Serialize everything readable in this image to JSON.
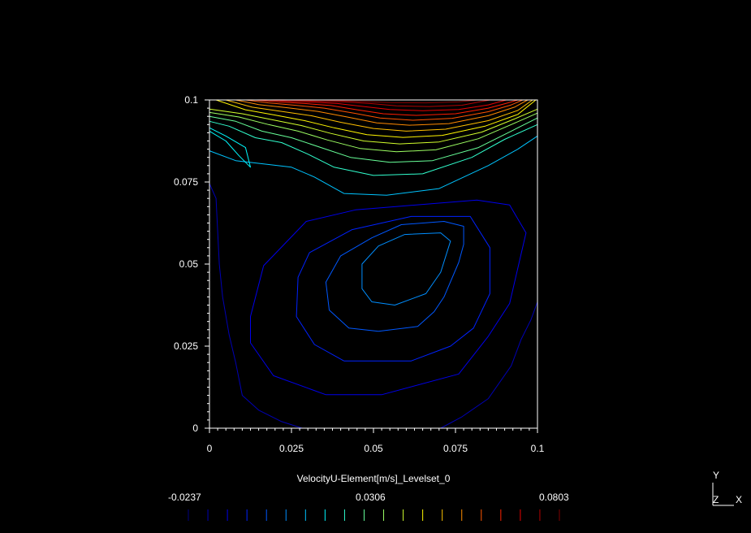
{
  "chart_data": {
    "type": "contour",
    "title": "",
    "xlabel": "",
    "ylabel": "",
    "xlim": [
      0,
      0.1
    ],
    "ylim": [
      0,
      0.1
    ],
    "x_ticks": [
      "0",
      "0.025",
      "0.05",
      "0.075",
      "0.1"
    ],
    "y_ticks": [
      "0",
      "0.025",
      "0.05",
      "0.075",
      "0.1"
    ],
    "grid": false,
    "colorbar": {
      "title": "VelocityU-Element[m/s]_Levelset_0",
      "min_label": "-0.0237",
      "mid_label": "0.0306",
      "max_label": "0.0803",
      "min": -0.0237,
      "max": 0.0803,
      "levels": 20
    },
    "contours": [
      {
        "level": -0.0182,
        "points": [
          [
            0.0283,
            0.0
          ],
          [
            0.022,
            0.002
          ],
          [
            0.015,
            0.0055
          ],
          [
            0.01,
            0.01
          ],
          [
            0.008,
            0.02
          ],
          [
            0.006,
            0.0285
          ],
          [
            0.004,
            0.04
          ],
          [
            0.003,
            0.05
          ],
          [
            0.0025,
            0.06
          ],
          [
            0.002,
            0.07
          ],
          [
            0.0,
            0.0745
          ]
        ]
      },
      {
        "level": -0.0182,
        "points": [
          [
            0.0705,
            0.0
          ],
          [
            0.077,
            0.0035
          ],
          [
            0.085,
            0.009
          ],
          [
            0.092,
            0.019
          ],
          [
            0.095,
            0.027
          ],
          [
            0.098,
            0.033
          ],
          [
            0.1,
            0.0385
          ]
        ]
      },
      {
        "level": -0.0127,
        "points": [
          [
            0.0355,
            0.0102
          ],
          [
            0.0195,
            0.016
          ],
          [
            0.0125,
            0.026
          ],
          [
            0.0125,
            0.034
          ],
          [
            0.0165,
            0.0495
          ],
          [
            0.0295,
            0.063
          ],
          [
            0.0445,
            0.0665
          ],
          [
            0.0815,
            0.0695
          ],
          [
            0.0915,
            0.068
          ],
          [
            0.0965,
            0.0595
          ],
          [
            0.0915,
            0.038
          ],
          [
            0.085,
            0.028
          ],
          [
            0.076,
            0.0165
          ],
          [
            0.0525,
            0.0102
          ],
          [
            0.0355,
            0.0102
          ]
        ]
      },
      {
        "level": -0.0072,
        "points": [
          [
            0.041,
            0.0205
          ],
          [
            0.032,
            0.0255
          ],
          [
            0.0265,
            0.034
          ],
          [
            0.027,
            0.046
          ],
          [
            0.0305,
            0.0535
          ],
          [
            0.0435,
            0.0605
          ],
          [
            0.0615,
            0.0645
          ],
          [
            0.0795,
            0.0645
          ],
          [
            0.0855,
            0.055
          ],
          [
            0.0855,
            0.041
          ],
          [
            0.0805,
            0.0305
          ],
          [
            0.0735,
            0.025
          ],
          [
            0.0615,
            0.0205
          ],
          [
            0.041,
            0.0205
          ]
        ]
      },
      {
        "level": -0.0017,
        "points": [
          [
            0.0515,
            0.0295
          ],
          [
            0.0425,
            0.0305
          ],
          [
            0.0365,
            0.036
          ],
          [
            0.0355,
            0.0445
          ],
          [
            0.04,
            0.0525
          ],
          [
            0.0495,
            0.058
          ],
          [
            0.0585,
            0.062
          ],
          [
            0.0715,
            0.063
          ],
          [
            0.0775,
            0.0615
          ],
          [
            0.0775,
            0.056
          ],
          [
            0.076,
            0.0505
          ],
          [
            0.0715,
            0.04
          ],
          [
            0.0685,
            0.0355
          ],
          [
            0.0635,
            0.031
          ],
          [
            0.0515,
            0.0295
          ]
        ]
      },
      {
        "level": 0.0038,
        "points": [
          [
            0.0565,
            0.0375
          ],
          [
            0.0495,
            0.0385
          ],
          [
            0.0465,
            0.0425
          ],
          [
            0.0465,
            0.05
          ],
          [
            0.0515,
            0.0555
          ],
          [
            0.0595,
            0.059
          ],
          [
            0.0705,
            0.0595
          ],
          [
            0.0735,
            0.057
          ],
          [
            0.0705,
            0.0475
          ],
          [
            0.066,
            0.041
          ],
          [
            0.0565,
            0.0375
          ]
        ]
      },
      {
        "level": 0.0093,
        "points": [
          [
            0.0,
            0.0845
          ],
          [
            0.008,
            0.0815
          ],
          [
            0.0165,
            0.0805
          ],
          [
            0.025,
            0.0795
          ],
          [
            0.032,
            0.0765
          ],
          [
            0.041,
            0.0715
          ],
          [
            0.054,
            0.071
          ],
          [
            0.07,
            0.073
          ],
          [
            0.085,
            0.08
          ],
          [
            0.094,
            0.085
          ],
          [
            0.1,
            0.089
          ]
        ]
      },
      {
        "level": 0.0148,
        "points": [
          [
            0.0,
            0.0915
          ],
          [
            0.005,
            0.089
          ],
          [
            0.011,
            0.0855
          ],
          [
            0.0125,
            0.0795
          ],
          [
            0.009,
            0.083
          ],
          [
            0.005,
            0.0875
          ],
          [
            0.0,
            0.0905
          ]
        ]
      },
      {
        "level": 0.0203,
        "points": [
          [
            0.0,
            0.0935
          ],
          [
            0.006,
            0.092
          ],
          [
            0.014,
            0.0885
          ],
          [
            0.022,
            0.087
          ],
          [
            0.03,
            0.0835
          ],
          [
            0.038,
            0.0795
          ],
          [
            0.05,
            0.077
          ],
          [
            0.065,
            0.0775
          ],
          [
            0.08,
            0.0825
          ],
          [
            0.09,
            0.088
          ],
          [
            0.1,
            0.0925
          ]
        ]
      },
      {
        "level": 0.0258,
        "points": [
          [
            0.0,
            0.095
          ],
          [
            0.008,
            0.0935
          ],
          [
            0.016,
            0.0905
          ],
          [
            0.025,
            0.0885
          ],
          [
            0.034,
            0.0855
          ],
          [
            0.043,
            0.0825
          ],
          [
            0.055,
            0.081
          ],
          [
            0.068,
            0.0815
          ],
          [
            0.082,
            0.0855
          ],
          [
            0.092,
            0.0905
          ],
          [
            0.1,
            0.0945
          ]
        ]
      },
      {
        "level": 0.0313,
        "points": [
          [
            0.0,
            0.0962
          ],
          [
            0.009,
            0.0948
          ],
          [
            0.018,
            0.0925
          ],
          [
            0.027,
            0.0905
          ],
          [
            0.036,
            0.0878
          ],
          [
            0.046,
            0.0852
          ],
          [
            0.057,
            0.0842
          ],
          [
            0.069,
            0.0848
          ],
          [
            0.082,
            0.0882
          ],
          [
            0.092,
            0.0925
          ],
          [
            0.1,
            0.096
          ]
        ]
      },
      {
        "level": 0.0368,
        "points": [
          [
            0.0,
            0.0972
          ],
          [
            0.01,
            0.0958
          ],
          [
            0.019,
            0.094
          ],
          [
            0.028,
            0.0922
          ],
          [
            0.037,
            0.0898
          ],
          [
            0.047,
            0.0875
          ],
          [
            0.058,
            0.0866
          ],
          [
            0.07,
            0.0872
          ],
          [
            0.083,
            0.0902
          ],
          [
            0.093,
            0.0942
          ],
          [
            0.1,
            0.0972
          ]
        ]
      },
      {
        "level": 0.0423,
        "points": [
          [
            0.002,
            0.1
          ],
          [
            0.011,
            0.097
          ],
          [
            0.02,
            0.0954
          ],
          [
            0.029,
            0.0937
          ],
          [
            0.038,
            0.0915
          ],
          [
            0.048,
            0.0894
          ],
          [
            0.059,
            0.0886
          ],
          [
            0.071,
            0.0892
          ],
          [
            0.084,
            0.092
          ],
          [
            0.094,
            0.0956
          ],
          [
            0.0995,
            0.1
          ]
        ]
      },
      {
        "level": 0.0478,
        "points": [
          [
            0.005,
            0.1
          ],
          [
            0.013,
            0.0978
          ],
          [
            0.022,
            0.0965
          ],
          [
            0.031,
            0.0952
          ],
          [
            0.04,
            0.0932
          ],
          [
            0.05,
            0.0913
          ],
          [
            0.06,
            0.0905
          ],
          [
            0.072,
            0.0911
          ],
          [
            0.085,
            0.0937
          ],
          [
            0.094,
            0.0968
          ],
          [
            0.0985,
            0.1
          ]
        ]
      },
      {
        "level": 0.0533,
        "points": [
          [
            0.008,
            0.1
          ],
          [
            0.015,
            0.0986
          ],
          [
            0.024,
            0.0976
          ],
          [
            0.033,
            0.0965
          ],
          [
            0.042,
            0.0948
          ],
          [
            0.051,
            0.093
          ],
          [
            0.061,
            0.0923
          ],
          [
            0.073,
            0.0928
          ],
          [
            0.085,
            0.0952
          ],
          [
            0.093,
            0.0978
          ],
          [
            0.097,
            0.1
          ]
        ]
      },
      {
        "level": 0.0588,
        "points": [
          [
            0.011,
            0.1
          ],
          [
            0.018,
            0.0991
          ],
          [
            0.026,
            0.0984
          ],
          [
            0.035,
            0.0975
          ],
          [
            0.044,
            0.096
          ],
          [
            0.052,
            0.0945
          ],
          [
            0.062,
            0.0938
          ],
          [
            0.074,
            0.0944
          ],
          [
            0.085,
            0.0964
          ],
          [
            0.092,
            0.0985
          ],
          [
            0.0955,
            0.1
          ]
        ]
      },
      {
        "level": 0.0643,
        "points": [
          [
            0.014,
            0.1
          ],
          [
            0.021,
            0.0994
          ],
          [
            0.029,
            0.0989
          ],
          [
            0.037,
            0.0983
          ],
          [
            0.045,
            0.097
          ],
          [
            0.053,
            0.0958
          ],
          [
            0.063,
            0.0953
          ],
          [
            0.075,
            0.0958
          ],
          [
            0.085,
            0.0975
          ],
          [
            0.091,
            0.0991
          ],
          [
            0.094,
            0.1
          ]
        ]
      },
      {
        "level": 0.0698,
        "points": [
          [
            0.018,
            0.1
          ],
          [
            0.025,
            0.0996
          ],
          [
            0.032,
            0.0993
          ],
          [
            0.039,
            0.0989
          ],
          [
            0.047,
            0.098
          ],
          [
            0.055,
            0.0971
          ],
          [
            0.065,
            0.0967
          ],
          [
            0.076,
            0.0971
          ],
          [
            0.085,
            0.0985
          ],
          [
            0.0905,
            0.1
          ]
        ]
      },
      {
        "level": 0.0748,
        "points": [
          [
            0.024,
            0.1
          ],
          [
            0.032,
            0.0997
          ],
          [
            0.041,
            0.0994
          ],
          [
            0.049,
            0.0989
          ],
          [
            0.057,
            0.0982
          ],
          [
            0.067,
            0.098
          ],
          [
            0.077,
            0.0984
          ],
          [
            0.0855,
            0.1
          ]
        ]
      },
      {
        "level": 0.0793,
        "points": [
          [
            0.034,
            0.1
          ],
          [
            0.045,
            0.0996
          ],
          [
            0.055,
            0.0992
          ],
          [
            0.066,
            0.0991
          ],
          [
            0.076,
            0.0994
          ],
          [
            0.0815,
            0.1
          ]
        ]
      }
    ]
  },
  "triad": {
    "y": "Y",
    "z": "Z",
    "x": "X"
  }
}
